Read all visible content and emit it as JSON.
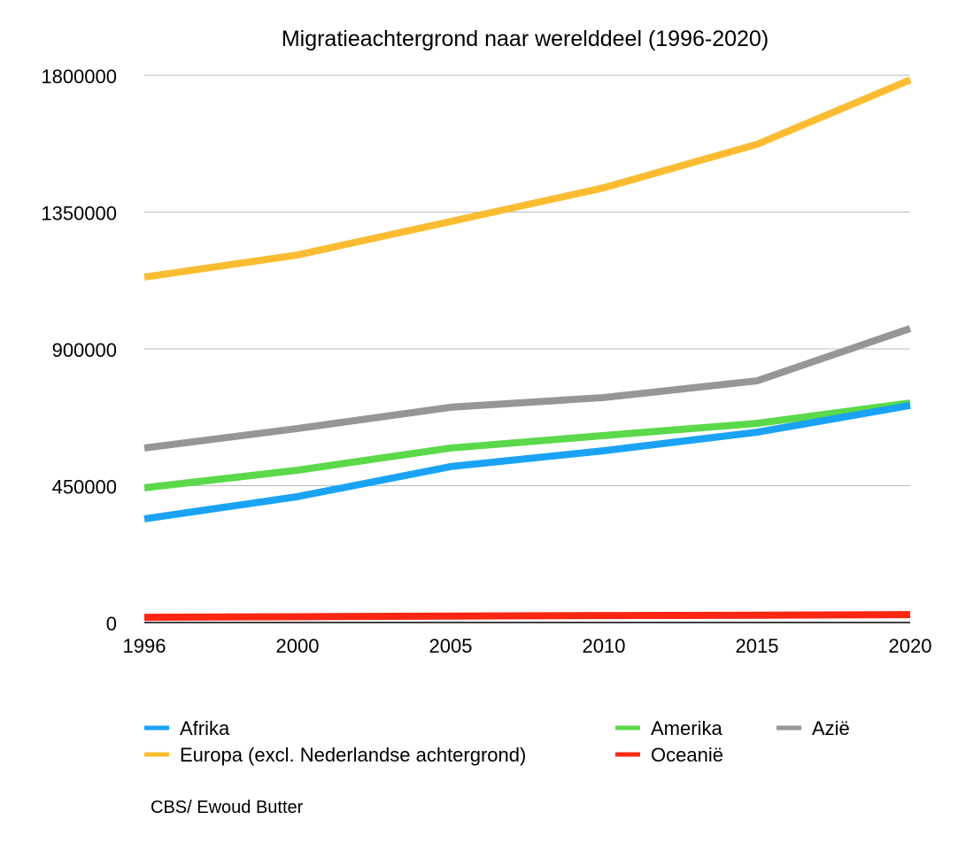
{
  "chart_data": {
    "type": "line",
    "title": "Migratieachtergrond naar werelddeel (1996-2020)",
    "xlabel": "",
    "ylabel": "",
    "categories": [
      "1996",
      "2000",
      "2005",
      "2010",
      "2015",
      "2020"
    ],
    "ylim": [
      0,
      1800000
    ],
    "yticks": [
      "0",
      "450000",
      "900000",
      "1350000",
      "1800000"
    ],
    "grid": true,
    "legend_position": "bottom",
    "series": [
      {
        "name": "Afrika",
        "color": "#1aa3f5",
        "values": [
          341000,
          414000,
          513000,
          565000,
          626000,
          714000
        ]
      },
      {
        "name": "Europa (excl. Nederlandse achtergrond)",
        "color": "#fbbc32",
        "values": [
          1136000,
          1209000,
          1319000,
          1430000,
          1573000,
          1785000
        ]
      },
      {
        "name": "Amerika",
        "color": "#5bd94a",
        "values": [
          443000,
          501000,
          574000,
          615000,
          655000,
          722000
        ]
      },
      {
        "name": "Oceanië",
        "color": "#fc2612",
        "values": [
          17000,
          19000,
          21000,
          23000,
          24000,
          26000
        ]
      },
      {
        "name": "Azië",
        "color": "#969696",
        "values": [
          574000,
          638000,
          708000,
          740000,
          795000,
          967000
        ]
      }
    ],
    "source": "CBS/ Ewoud Butter"
  }
}
